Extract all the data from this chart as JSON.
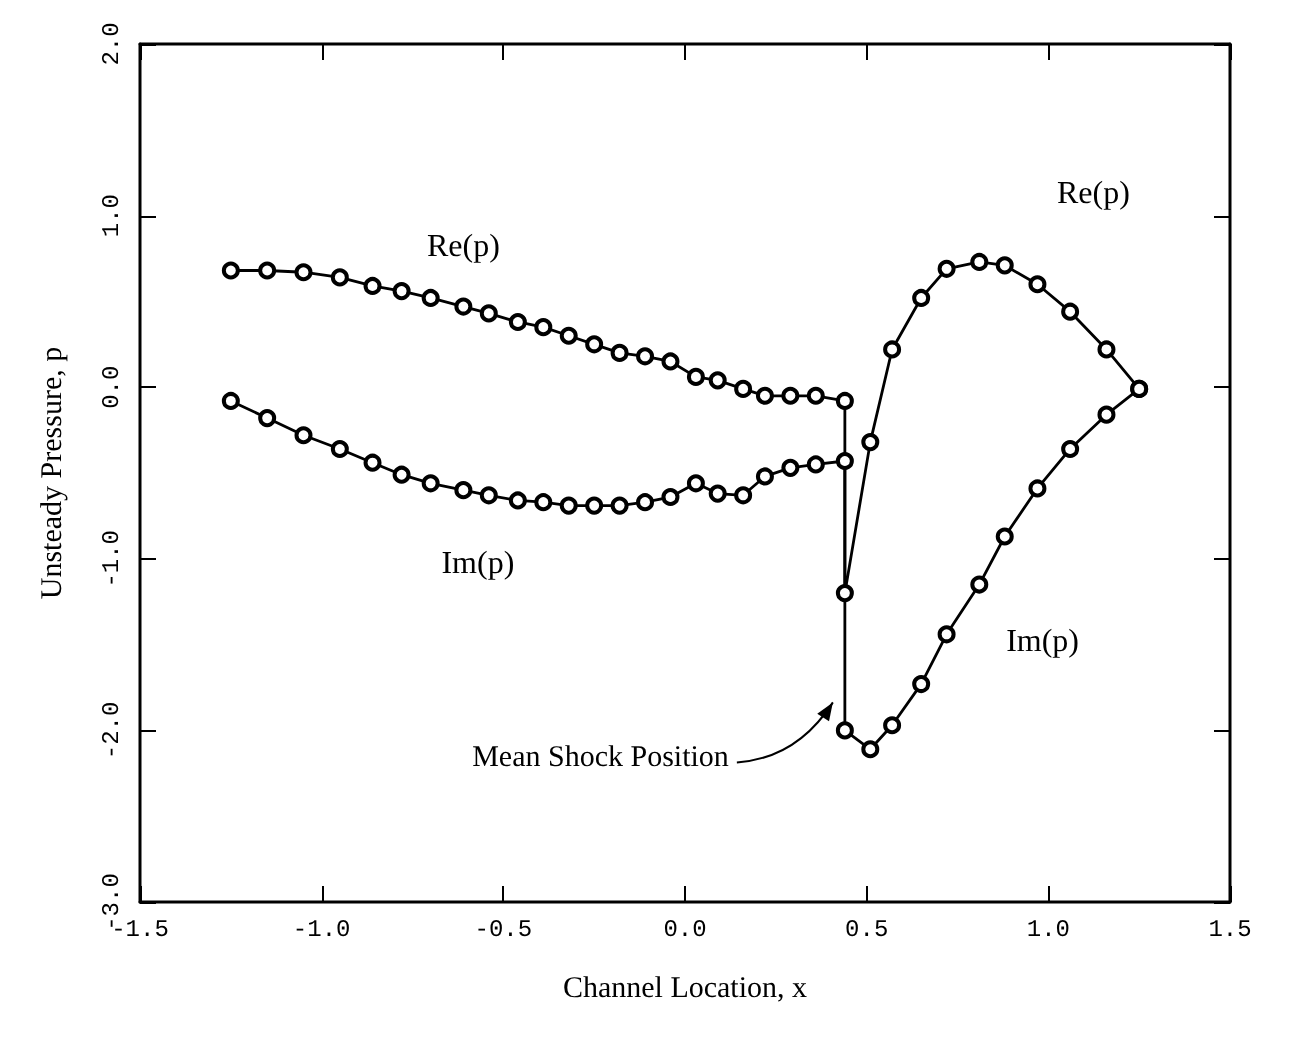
{
  "chart_data": {
    "type": "line",
    "xlabel": "Channel Location, x",
    "ylabel": "Unsteady Pressure, p",
    "xlim": [
      -1.5,
      1.5
    ],
    "ylim": [
      -3.0,
      2.0
    ],
    "xticks": [
      {
        "value": -1.5,
        "label": "-1.5"
      },
      {
        "value": -1.0,
        "label": "-1.0"
      },
      {
        "value": -0.5,
        "label": "-0.5"
      },
      {
        "value": 0,
        "label": "0.0"
      },
      {
        "value": 0.5,
        "label": "0.5"
      },
      {
        "value": 1.0,
        "label": "1.0"
      },
      {
        "value": 1.5,
        "label": "1.5"
      }
    ],
    "yticks": [
      {
        "value": -3.0,
        "label": "-3.0"
      },
      {
        "value": -2.0,
        "label": "-2.0"
      },
      {
        "value": -1.0,
        "label": "-1.0"
      },
      {
        "value": 0,
        "label": "0.0"
      },
      {
        "value": 1.0,
        "label": "1.0"
      },
      {
        "value": 2.0,
        "label": "2.0"
      }
    ],
    "marker": "circle",
    "line_style": "solid",
    "series": [
      {
        "name": "Re(p)",
        "color": "#000000",
        "x": [
          -1.25,
          -1.15,
          -1.05,
          -0.95,
          -0.86,
          -0.78,
          -0.7,
          -0.61,
          -0.54,
          -0.46,
          -0.39,
          -0.32,
          -0.25,
          -0.18,
          -0.11,
          -0.04,
          0.03,
          0.09,
          0.16,
          0.22,
          0.29,
          0.36,
          0.44,
          0.44,
          0.51,
          0.57,
          0.65,
          0.72,
          0.81,
          0.88,
          0.97,
          1.06,
          1.16,
          1.25
        ],
        "values": [
          0.68,
          0.68,
          0.67,
          0.64,
          0.59,
          0.56,
          0.52,
          0.47,
          0.43,
          0.38,
          0.35,
          0.3,
          0.25,
          0.2,
          0.18,
          0.15,
          0.06,
          0.04,
          -0.01,
          -0.05,
          -0.05,
          -0.05,
          -0.08,
          -1.2,
          -0.32,
          0.22,
          0.52,
          0.69,
          0.73,
          0.71,
          0.6,
          0.44,
          0.22,
          -0.01
        ]
      },
      {
        "name": "Im(p)",
        "color": "#000000",
        "x": [
          -1.25,
          -1.15,
          -1.05,
          -0.95,
          -0.86,
          -0.78,
          -0.7,
          -0.61,
          -0.54,
          -0.46,
          -0.39,
          -0.32,
          -0.25,
          -0.18,
          -0.11,
          -0.04,
          0.03,
          0.09,
          0.16,
          0.22,
          0.29,
          0.36,
          0.44,
          0.44,
          0.51,
          0.57,
          0.65,
          0.72,
          0.81,
          0.88,
          0.97,
          1.06,
          1.16,
          1.25
        ],
        "values": [
          -0.08,
          -0.18,
          -0.28,
          -0.36,
          -0.44,
          -0.51,
          -0.56,
          -0.6,
          -0.63,
          -0.66,
          -0.67,
          -0.69,
          -0.69,
          -0.69,
          -0.67,
          -0.64,
          -0.56,
          -0.62,
          -0.63,
          -0.52,
          -0.47,
          -0.45,
          -0.43,
          -2.0,
          -2.11,
          -1.97,
          -1.73,
          -1.44,
          -1.15,
          -0.87,
          -0.59,
          -0.36,
          -0.16,
          -0.01
        ]
      }
    ],
    "annotations": [
      "Mean Shock Position"
    ]
  }
}
